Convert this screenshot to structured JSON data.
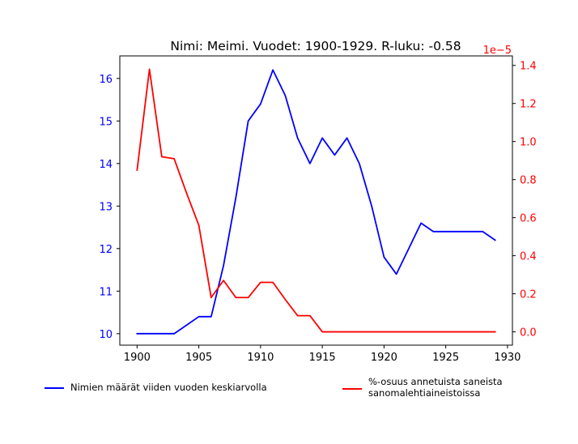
{
  "chart_data": {
    "type": "line",
    "title": "Nimi: Meimi. Vuodet: 1900-1929. R-luku: -0.58",
    "xlabel": "",
    "x": [
      1900,
      1901,
      1902,
      1903,
      1904,
      1905,
      1906,
      1907,
      1908,
      1909,
      1910,
      1911,
      1912,
      1913,
      1914,
      1915,
      1916,
      1917,
      1918,
      1919,
      1920,
      1921,
      1922,
      1923,
      1924,
      1925,
      1926,
      1927,
      1928,
      1929
    ],
    "xlim": [
      1898.6,
      1930.4
    ],
    "xticks": [
      1900,
      1905,
      1910,
      1915,
      1920,
      1925,
      1930
    ],
    "left_axis": {
      "ylim": [
        9.73,
        16.53
      ],
      "ticks": [
        10,
        11,
        12,
        13,
        14,
        15,
        16
      ],
      "color": "#0000ff"
    },
    "right_axis": {
      "ylim": [
        -0.07,
        1.45
      ],
      "ticks": [
        0.0,
        0.2,
        0.4,
        0.6,
        0.8,
        1.0,
        1.2,
        1.4
      ],
      "tick_labels": [
        "0.0",
        "0.2",
        "0.4",
        "0.6",
        "0.8",
        "1.0",
        "1.2",
        "1.4"
      ],
      "offset_label": "1e−5",
      "color": "#ff0000"
    },
    "series": [
      {
        "name": "Nimien määrät viiden vuoden keskiarvolla",
        "axis": "left",
        "color": "#0000ff",
        "values": [
          10.0,
          10.0,
          10.0,
          10.0,
          10.2,
          10.4,
          10.4,
          11.6,
          13.2,
          15.0,
          15.4,
          16.2,
          15.6,
          14.6,
          14.0,
          14.6,
          14.2,
          14.6,
          14.0,
          13.0,
          11.8,
          11.4,
          12.0,
          12.6,
          12.4,
          12.4,
          12.4,
          12.4,
          12.4,
          12.2
        ]
      },
      {
        "name": "%-osuus annetuista saneista\n sanomalehtiaineistoissa",
        "axis": "right",
        "color": "#ff0000",
        "values": [
          0.85,
          1.38,
          0.92,
          0.91,
          0.73,
          0.56,
          0.18,
          0.27,
          0.18,
          0.18,
          0.26,
          0.26,
          0.17,
          0.085,
          0.085,
          0.0,
          0.0,
          0.0,
          0.0,
          0.0,
          0.0,
          0.0,
          0.0,
          0.0,
          0.0,
          0.0,
          0.0,
          0.0,
          0.0,
          0.0
        ]
      }
    ],
    "legend_position": "bottom"
  }
}
